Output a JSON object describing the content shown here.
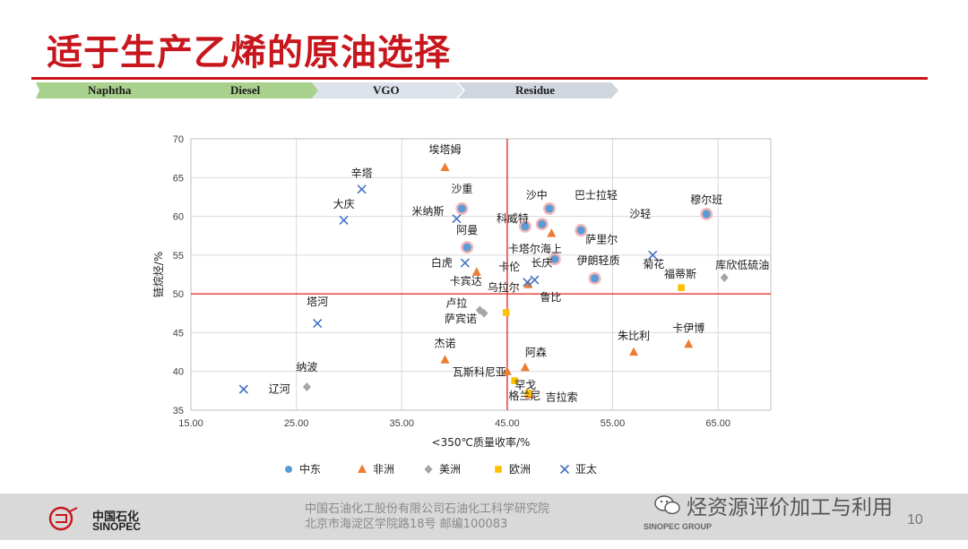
{
  "slide": {
    "title": "适于生产乙烯的原油选择",
    "bands": [
      "Naphtha",
      "Diesel",
      "VGO",
      "Residue"
    ]
  },
  "chart_data": {
    "type": "scatter",
    "xlabel": "<350℃质量收率/%",
    "ylabel": "链烷烃/%",
    "xlim": [
      15,
      70
    ],
    "ylim": [
      35,
      70
    ],
    "xticks": [
      "15.00",
      "25.00",
      "35.00",
      "45.00",
      "55.00",
      "65.00"
    ],
    "yticks": [
      "35",
      "40",
      "45",
      "50",
      "55",
      "60",
      "65",
      "70"
    ],
    "reference_lines": {
      "x": 45,
      "y": 50
    },
    "legend_position": "bottom",
    "series": [
      {
        "name": "中东",
        "marker": "circle",
        "color": "#5b9bd5",
        "points": [
          {
            "label": "沙重",
            "x": 40.7,
            "y": 61.0
          },
          {
            "label": "阿曼",
            "x": 41.2,
            "y": 56.0
          },
          {
            "label": "科威特",
            "x": 46.7,
            "y": 58.7
          },
          {
            "label": "沙中",
            "x": 48.3,
            "y": 59.0
          },
          {
            "label": "巴士拉轻",
            "x": 49.0,
            "y": 61.0
          },
          {
            "label": "沙轻",
            "x": 52.0,
            "y": 58.2
          },
          {
            "label": "卡塔尔海上",
            "x": 49.5,
            "y": 54.5
          },
          {
            "label": "伊朗轻质",
            "x": 53.3,
            "y": 52.0
          },
          {
            "label": "穆尔班",
            "x": 63.9,
            "y": 60.3
          }
        ]
      },
      {
        "name": "非洲",
        "marker": "triangle",
        "color": "#ed7d31",
        "points": [
          {
            "label": "埃塔姆",
            "x": 39.1,
            "y": 66.3
          },
          {
            "label": "卡宾达",
            "x": 42.1,
            "y": 52.8
          },
          {
            "label": "萨里尔",
            "x": 49.2,
            "y": 57.8
          },
          {
            "label": "鲁比",
            "x": 47.0,
            "y": 51.2
          },
          {
            "label": "杰诺",
            "x": 39.1,
            "y": 41.5
          },
          {
            "label": "阿森",
            "x": 46.7,
            "y": 40.5
          },
          {
            "label": "瓦斯科尼亚",
            "x": 45.0,
            "y": 40.0
          },
          {
            "label": "吉拉索",
            "x": 47.1,
            "y": 37.0
          },
          {
            "label": "朱比利",
            "x": 57.0,
            "y": 42.5
          },
          {
            "label": "卡伊博",
            "x": 62.2,
            "y": 43.5
          }
        ]
      },
      {
        "name": "美洲",
        "marker": "diamond",
        "color": "#a5a5a5",
        "points": [
          {
            "label": "卢拉",
            "x": 42.4,
            "y": 47.9
          },
          {
            "label": "萨宾诺",
            "x": 42.8,
            "y": 47.5
          },
          {
            "label": "纳波",
            "x": 26.0,
            "y": 38.0
          },
          {
            "label": "库欣低硫油",
            "x": 65.6,
            "y": 52.1
          }
        ]
      },
      {
        "name": "欧洲",
        "marker": "square",
        "color": "#ffc000",
        "points": [
          {
            "label": "乌拉尔",
            "x": 44.9,
            "y": 47.6
          },
          {
            "label": "罕戈",
            "x": 45.7,
            "y": 38.8
          },
          {
            "label": "格兰尼",
            "x": 47.0,
            "y": 37.2
          },
          {
            "label": "福蒂斯",
            "x": 61.5,
            "y": 50.8
          }
        ]
      },
      {
        "name": "亚太",
        "marker": "x",
        "color": "#4472c4",
        "points": [
          {
            "label": "辛塔",
            "x": 31.2,
            "y": 63.5
          },
          {
            "label": "大庆",
            "x": 29.5,
            "y": 59.5
          },
          {
            "label": "米纳斯",
            "x": 40.2,
            "y": 59.7
          },
          {
            "label": "白虎",
            "x": 41.0,
            "y": 54.0
          },
          {
            "label": "卡伦",
            "x": 46.9,
            "y": 51.5
          },
          {
            "label": "长庆",
            "x": 47.6,
            "y": 51.8
          },
          {
            "label": "菊花",
            "x": 58.8,
            "y": 55.0
          },
          {
            "label": "塔河",
            "x": 27.0,
            "y": 46.2
          },
          {
            "label": "辽河",
            "x": 20.0,
            "y": 37.7
          }
        ]
      }
    ]
  },
  "footer": {
    "company_cn": "中国石化",
    "company_en": "SINOPEC",
    "org_line1": "中国石油化工股份有限公司石油化工科学研究院",
    "org_line2": "北京市海淀区学院路18号  邮编100083",
    "group": "SINOPEC GROUP",
    "watermark": "烃资源评价加工与利用",
    "page": "10"
  }
}
